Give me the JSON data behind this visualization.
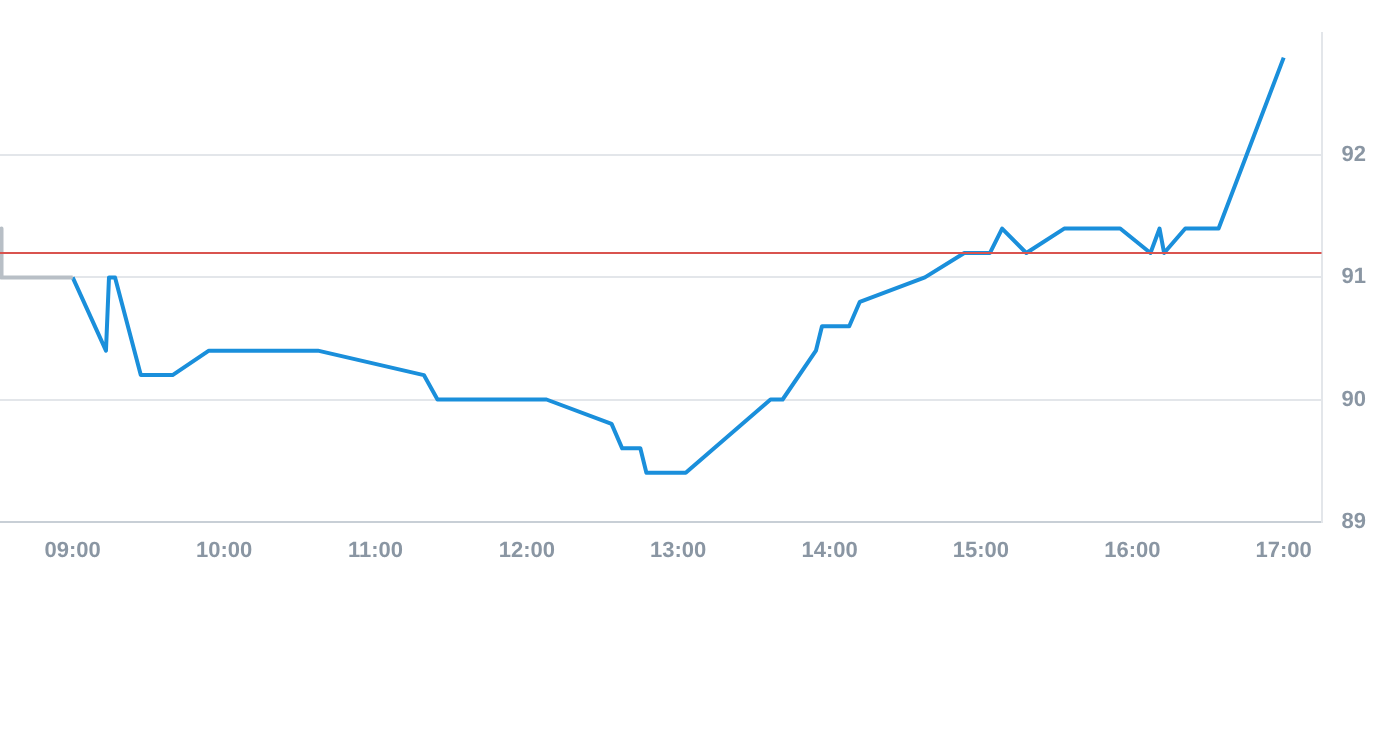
{
  "chart_data": {
    "type": "line",
    "xlim": [
      8.52,
      17.25
    ],
    "ylim": [
      89,
      93
    ],
    "xticks": [
      {
        "value": 9,
        "label": "09:00"
      },
      {
        "value": 10,
        "label": "10:00"
      },
      {
        "value": 11,
        "label": "11:00"
      },
      {
        "value": 12,
        "label": "12:00"
      },
      {
        "value": 13,
        "label": "13:00"
      },
      {
        "value": 14,
        "label": "14:00"
      },
      {
        "value": 15,
        "label": "15:00"
      },
      {
        "value": 16,
        "label": "16:00"
      },
      {
        "value": 17,
        "label": "17:00"
      }
    ],
    "yticks": [
      89,
      90,
      91,
      92
    ],
    "grid": "y",
    "legend": false,
    "marker": "none",
    "line_style": "solid",
    "ref_lines": [
      {
        "axis": "y",
        "value": 91.2,
        "color": "#d9534f"
      }
    ],
    "series": [
      {
        "color": "#b8bfc6",
        "x": [
          8.52,
          8.53,
          9.0
        ],
        "values": [
          91.4,
          91.0,
          91.0
        ]
      },
      {
        "color": "#1a8fdb",
        "x": [
          9.0,
          9.22,
          9.24,
          9.28,
          9.45,
          9.66,
          9.9,
          10.62,
          11.32,
          11.41,
          12.13,
          12.56,
          12.63,
          12.75,
          12.79,
          13.05,
          13.61,
          13.69,
          13.91,
          13.95,
          14.13,
          14.2,
          14.63,
          14.89,
          15.06,
          15.14,
          15.3,
          15.55,
          15.92,
          16.12,
          16.18,
          16.21,
          16.35,
          16.57,
          17.0
        ],
        "values": [
          91.0,
          90.4,
          91.0,
          91.0,
          90.2,
          90.2,
          90.4,
          90.4,
          90.2,
          90.0,
          90.0,
          89.8,
          89.6,
          89.6,
          89.4,
          89.4,
          90.0,
          90.0,
          90.4,
          90.6,
          90.6,
          90.8,
          91.0,
          91.2,
          91.2,
          91.4,
          91.2,
          91.4,
          91.4,
          91.2,
          91.4,
          91.2,
          91.4,
          91.4,
          92.8
        ]
      }
    ]
  }
}
